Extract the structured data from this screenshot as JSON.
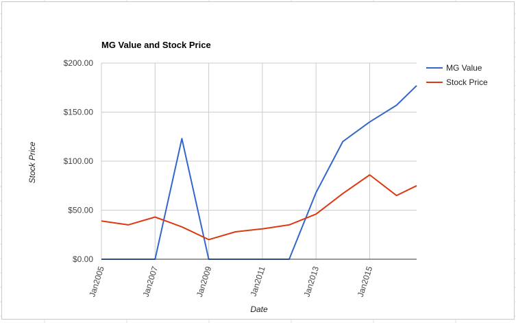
{
  "chart_data": {
    "type": "line",
    "title": "MG Value and Stock Price",
    "xlabel": "Date",
    "ylabel": "Stock Price",
    "x": [
      "2005-01",
      "2006-01",
      "2007-01",
      "2008-01",
      "2009-01",
      "2010-01",
      "2011-01",
      "2012-01",
      "2013-01",
      "2014-01",
      "2015-01",
      "2016-01",
      "2016-10"
    ],
    "x_tick_labels": [
      "Jan2005",
      "Jan2007",
      "Jan2009",
      "Jan2011",
      "Jan2013",
      "Jan2015"
    ],
    "y_tick_labels": [
      "$0.00",
      "$50.00",
      "$100.00",
      "$150.00",
      "$200.00"
    ],
    "ylim": [
      0,
      200
    ],
    "grid": true,
    "legend_position": "right",
    "series": [
      {
        "name": "MG Value",
        "color": "#3366cc",
        "values": [
          0,
          0,
          0,
          123,
          0,
          0,
          0,
          0,
          68,
          120,
          140,
          157,
          177
        ]
      },
      {
        "name": "Stock Price",
        "color": "#dc3912",
        "values": [
          39,
          35,
          43,
          33,
          20,
          28,
          31,
          35,
          46,
          67,
          86,
          65,
          75
        ]
      }
    ]
  }
}
